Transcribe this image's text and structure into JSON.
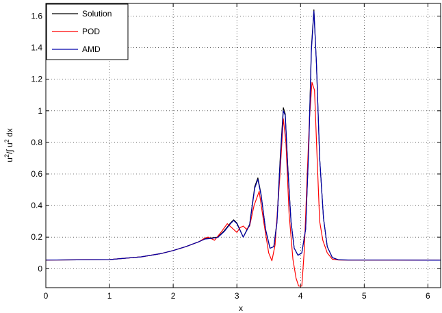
{
  "chart_data": {
    "type": "line",
    "xlabel": "x",
    "ylabel": {
      "base1": "u",
      "sup1": "2",
      "mid": "/∫ u",
      "sup2": "2",
      "tail": " dx"
    },
    "xlim": [
      0,
      6.2
    ],
    "ylim": [
      -0.12,
      1.68
    ],
    "xticks": [
      0,
      1,
      2,
      3,
      4,
      5,
      6
    ],
    "xtick_labels": [
      "0",
      "1",
      "2",
      "3",
      "4",
      "5",
      "6"
    ],
    "yticks": [
      0,
      0.2,
      0.4,
      0.6,
      0.8,
      1.0,
      1.2,
      1.4,
      1.6
    ],
    "ytick_labels": [
      "0",
      "0.2",
      "0.4",
      "0.6",
      "0.8",
      "1",
      "1.2",
      "1.4",
      "1.6"
    ],
    "grid": true,
    "legend_position": "top-left",
    "series": [
      {
        "name": "Solution",
        "color": "#000000",
        "x": [
          0,
          0.5,
          1.0,
          1.5,
          1.8,
          2.0,
          2.2,
          2.4,
          2.5,
          2.6,
          2.7,
          2.8,
          2.9,
          2.95,
          3.0,
          3.1,
          3.2,
          3.28,
          3.33,
          3.38,
          3.45,
          3.52,
          3.58,
          3.63,
          3.68,
          3.73,
          3.76,
          3.8,
          3.85,
          3.9,
          3.96,
          4.02,
          4.08,
          4.13,
          4.17,
          4.21,
          4.25,
          4.3,
          4.36,
          4.42,
          4.5,
          4.6,
          4.8,
          5.0,
          5.5,
          6.2
        ],
        "values": [
          0.055,
          0.056,
          0.058,
          0.075,
          0.095,
          0.115,
          0.14,
          0.17,
          0.19,
          0.195,
          0.2,
          0.24,
          0.29,
          0.31,
          0.29,
          0.2,
          0.28,
          0.52,
          0.575,
          0.47,
          0.25,
          0.13,
          0.14,
          0.3,
          0.7,
          1.02,
          0.98,
          0.65,
          0.3,
          0.13,
          0.085,
          0.1,
          0.25,
          0.8,
          1.4,
          1.64,
          1.3,
          0.7,
          0.32,
          0.14,
          0.07,
          0.056,
          0.055,
          0.055,
          0.055,
          0.054
        ]
      },
      {
        "name": "POD",
        "color": "#ff0000",
        "x": [
          0,
          0.5,
          1.0,
          1.5,
          1.8,
          2.0,
          2.2,
          2.4,
          2.5,
          2.55,
          2.65,
          2.75,
          2.85,
          2.92,
          3.0,
          3.05,
          3.1,
          3.15,
          3.2,
          3.27,
          3.35,
          3.42,
          3.5,
          3.55,
          3.6,
          3.67,
          3.73,
          3.77,
          3.82,
          3.88,
          3.93,
          3.97,
          4.02,
          4.06,
          4.1,
          4.14,
          4.18,
          4.22,
          4.26,
          4.3,
          4.35,
          4.42,
          4.5,
          4.6,
          4.8,
          5.0,
          5.5,
          6.2
        ],
        "values": [
          0.055,
          0.056,
          0.058,
          0.075,
          0.095,
          0.115,
          0.14,
          0.17,
          0.195,
          0.2,
          0.18,
          0.23,
          0.285,
          0.26,
          0.23,
          0.26,
          0.27,
          0.25,
          0.27,
          0.4,
          0.49,
          0.3,
          0.1,
          0.05,
          0.15,
          0.55,
          0.95,
          0.8,
          0.35,
          0.06,
          -0.06,
          -0.11,
          -0.11,
          0.12,
          0.55,
          0.95,
          1.18,
          1.13,
          0.7,
          0.3,
          0.18,
          0.1,
          0.06,
          0.055,
          0.055,
          0.055,
          0.055,
          0.054
        ]
      },
      {
        "name": "AMD",
        "color": "#0000aa",
        "x": [
          0,
          0.5,
          1.0,
          1.5,
          1.8,
          2.0,
          2.2,
          2.4,
          2.5,
          2.6,
          2.7,
          2.8,
          2.9,
          2.95,
          3.0,
          3.1,
          3.2,
          3.28,
          3.33,
          3.38,
          3.45,
          3.52,
          3.58,
          3.63,
          3.68,
          3.73,
          3.76,
          3.8,
          3.85,
          3.9,
          3.96,
          4.02,
          4.08,
          4.13,
          4.17,
          4.21,
          4.25,
          4.3,
          4.36,
          4.42,
          4.5,
          4.6,
          4.8,
          5.0,
          5.5,
          6.2
        ],
        "values": [
          0.055,
          0.056,
          0.058,
          0.075,
          0.095,
          0.115,
          0.14,
          0.17,
          0.188,
          0.192,
          0.198,
          0.235,
          0.285,
          0.305,
          0.285,
          0.2,
          0.275,
          0.51,
          0.565,
          0.465,
          0.25,
          0.13,
          0.14,
          0.29,
          0.68,
          1.0,
          0.97,
          0.64,
          0.3,
          0.13,
          0.085,
          0.1,
          0.25,
          0.78,
          1.38,
          1.63,
          1.3,
          0.7,
          0.32,
          0.14,
          0.07,
          0.056,
          0.055,
          0.055,
          0.055,
          0.054
        ]
      }
    ]
  }
}
